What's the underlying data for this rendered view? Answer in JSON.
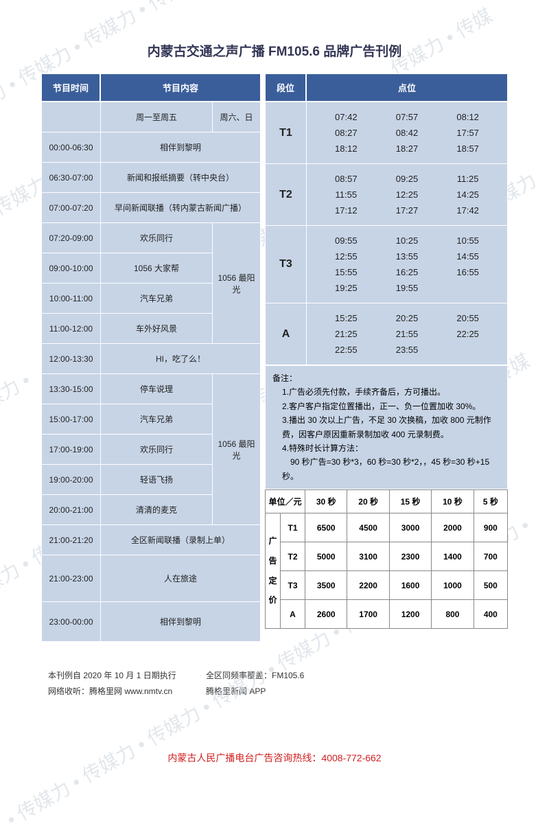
{
  "title": "内蒙古交通之声广播 FM105.6 品牌广告刊例",
  "headers": {
    "time": "节目时间",
    "content": "节目内容",
    "segment": "段位",
    "slot": "点位"
  },
  "schedule": {
    "weekday_label": "周一至周五",
    "weekend_label": "周六、日",
    "rows": [
      {
        "time": "00:00-06:30",
        "content": "相伴到黎明",
        "span": "full"
      },
      {
        "time": "06:30-07:00",
        "content": "新闻和报纸摘要（转中央台）",
        "span": "full"
      },
      {
        "time": "07:00-07:20",
        "content": "早间新闻联播（转内蒙古新闻广播）",
        "span": "full"
      },
      {
        "time": "07:20-09:00",
        "content": "欢乐同行",
        "weekend": "1056 最阳光",
        "group": 1
      },
      {
        "time": "09:00-10:00",
        "content": "1056 大家帮",
        "group": 1
      },
      {
        "time": "10:00-11:00",
        "content": "汽车兄弟",
        "group": 1
      },
      {
        "time": "11:00-12:00",
        "content": "车外好风景",
        "group": 1
      },
      {
        "time": "12:00-13:30",
        "content": "HI，吃了么！",
        "span": "full"
      },
      {
        "time": "13:30-15:00",
        "content": "停车说理",
        "weekend": "1056 最阳光",
        "group": 2
      },
      {
        "time": "15:00-17:00",
        "content": "汽车兄弟",
        "group": 2
      },
      {
        "time": "17:00-19:00",
        "content": "欢乐同行",
        "group": 2
      },
      {
        "time": "19:00-20:00",
        "content": "轻语飞扬",
        "group": 2
      },
      {
        "time": "20:00-21:00",
        "content": "清清的麦克",
        "group": 2
      },
      {
        "time": "21:00-21:20",
        "content": "全区新闻联播（录制上单）",
        "span": "full"
      },
      {
        "time": "21:00-23:00",
        "content": "人在旅途",
        "span": "full"
      },
      {
        "time": "23:00-00:00",
        "content": "相伴到黎明",
        "span": "full"
      }
    ]
  },
  "segments": [
    {
      "label": "T1",
      "times": [
        "07:42",
        "07:57",
        "08:12",
        "08:27",
        "08:42",
        "17:57",
        "18:12",
        "18:27",
        "18:57"
      ]
    },
    {
      "label": "T2",
      "times": [
        "08:57",
        "09:25",
        "11:25",
        "11:55",
        "12:25",
        "14:25",
        "17:12",
        "17:27",
        "17:42"
      ]
    },
    {
      "label": "T3",
      "times": [
        "09:55",
        "10:25",
        "10:55",
        "12:55",
        "13:55",
        "14:55",
        "15:55",
        "16:25",
        "16:55",
        "19:25",
        "19:55",
        ""
      ]
    },
    {
      "label": "A",
      "times": [
        "15:25",
        "20:25",
        "20:55",
        "21:25",
        "21:55",
        "22:25",
        "22:55",
        "23:55",
        ""
      ]
    }
  ],
  "notes": {
    "title": "备注：",
    "items": [
      "1.广告必须先付款，手续齐备后，方可播出。",
      "2.客户客户指定位置播出，正一、负一位置加收 30%。",
      "3.播出 30 次以上广告，不足 30 次换稿，加收 800 元制作费，因客户原因重新录制加收 400 元录制费。",
      "4.特殊时长计算方法：",
      "　90 秒广告=30 秒*3，60 秒=30 秒*2，，45 秒=30 秒+15 秒。"
    ]
  },
  "price": {
    "unit_label": "单位／元",
    "vlabel": "广告定价",
    "cols": [
      "30 秒",
      "20 秒",
      "15 秒",
      "10 秒",
      "5 秒"
    ],
    "rows": [
      {
        "seg": "T1",
        "vals": [
          "6500",
          "4500",
          "3000",
          "2000",
          "900"
        ]
      },
      {
        "seg": "T2",
        "vals": [
          "5000",
          "3100",
          "2300",
          "1400",
          "700"
        ]
      },
      {
        "seg": "T3",
        "vals": [
          "3500",
          "2200",
          "1600",
          "1000",
          "500"
        ]
      },
      {
        "seg": "A",
        "vals": [
          "2600",
          "1700",
          "1200",
          "800",
          "400"
        ]
      }
    ]
  },
  "footer": {
    "line1a": "本刊例自 2020 年 10 月 1 日期执行",
    "line1b": "全区同频率覆盖：FM105.6",
    "line2a": "网络收听：腾格里网 www.nmtv.cn",
    "line2b": "腾格里新闻 APP"
  },
  "hotline": "内蒙古人民广播电台广告咨询热线：4008-772-662",
  "watermark_text": "传媒力 • ",
  "colors": {
    "header_bg": "#3a5e9a",
    "cell_bg": "#c7d4e6",
    "hotline": "#d02020"
  }
}
